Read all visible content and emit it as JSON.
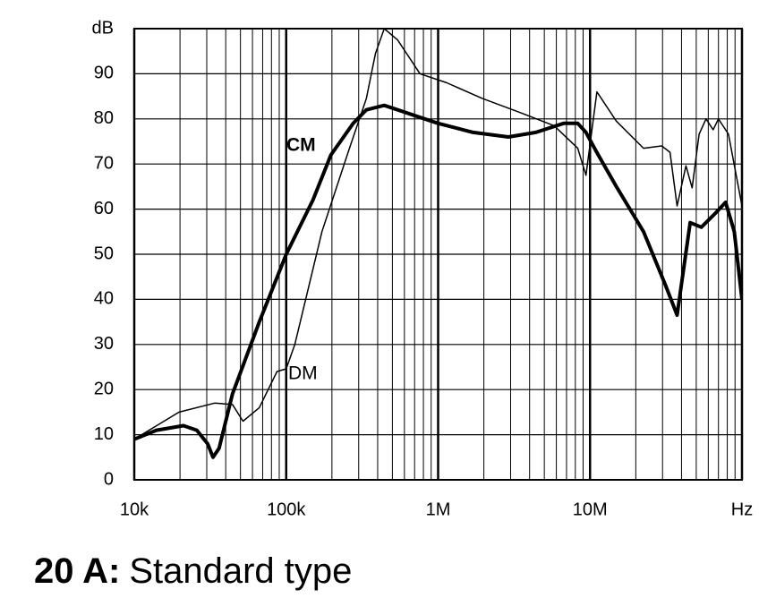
{
  "chart_data": {
    "type": "line",
    "title_lead": "20 A:",
    "title": "Standard type",
    "xscale": "log",
    "grid": true,
    "xlim": [
      10000,
      100000000
    ],
    "xticks": [
      {
        "value": 10000,
        "label": "10k"
      },
      {
        "value": 100000,
        "label": "100k"
      },
      {
        "value": 1000000,
        "label": "1M"
      },
      {
        "value": 10000000,
        "label": "10M"
      },
      {
        "value": 100000000,
        "label": "Hz"
      }
    ],
    "xminorticks": [
      20000,
      30000,
      40000,
      50000,
      60000,
      70000,
      80000,
      90000,
      200000,
      300000,
      400000,
      500000,
      600000,
      700000,
      800000,
      900000,
      2000000,
      3000000,
      4000000,
      5000000,
      6000000,
      7000000,
      8000000,
      9000000,
      20000000,
      30000000,
      40000000,
      50000000,
      60000000,
      70000000,
      80000000,
      90000000
    ],
    "ylim": [
      0,
      100
    ],
    "yticks": [
      0,
      10,
      20,
      30,
      40,
      50,
      60,
      70,
      80,
      90,
      {
        "value": 100,
        "label": "dB"
      }
    ],
    "series": [
      {
        "name": "CM",
        "color": "#000000",
        "x": [
          10000,
          14000,
          21100,
          25800,
          30400,
          33000,
          36200,
          44300,
          66500,
          100000,
          150000,
          197000,
          276000,
          337000,
          442000,
          666000,
          1000000,
          1700000,
          2900000,
          4400000,
          6700000,
          8300000,
          9400000,
          10900000,
          14900000,
          22500000,
          31500000,
          37400000,
          45600000,
          54000000,
          66500000,
          78000000,
          89000000,
          100000000
        ],
        "values": [
          9,
          11,
          12,
          11,
          8,
          5,
          7,
          19,
          35,
          50,
          62,
          72,
          79,
          82,
          83,
          81,
          79,
          77,
          76,
          77,
          79,
          79,
          77,
          73,
          65,
          55,
          43,
          36.5,
          57,
          56,
          59,
          61.5,
          55,
          40
        ]
      },
      {
        "name": "DM",
        "color": "#000000",
        "x": [
          10000,
          19700,
          33800,
          44300,
          52000,
          66500,
          87000,
          100000,
          114000,
          172000,
          258000,
          337000,
          387000,
          442000,
          541000,
          760000,
          1140000,
          1960000,
          3400000,
          5800000,
          8300000,
          9400000,
          11100000,
          14900000,
          22500000,
          29600000,
          33600000,
          37400000,
          42800000,
          47000000,
          52200000,
          58000000,
          64600000,
          70000000,
          81500000,
          100000000
        ],
        "values": [
          9,
          15,
          17,
          16.7,
          13,
          16,
          24,
          24.6,
          30,
          55,
          73,
          84.5,
          94.5,
          100,
          97.5,
          90,
          88,
          84.5,
          81.5,
          78.5,
          73.5,
          67.5,
          86,
          79.5,
          73.5,
          74,
          72.6,
          60.7,
          69.6,
          64.7,
          76.6,
          80,
          77.6,
          80,
          76.6,
          60.7
        ]
      }
    ]
  }
}
